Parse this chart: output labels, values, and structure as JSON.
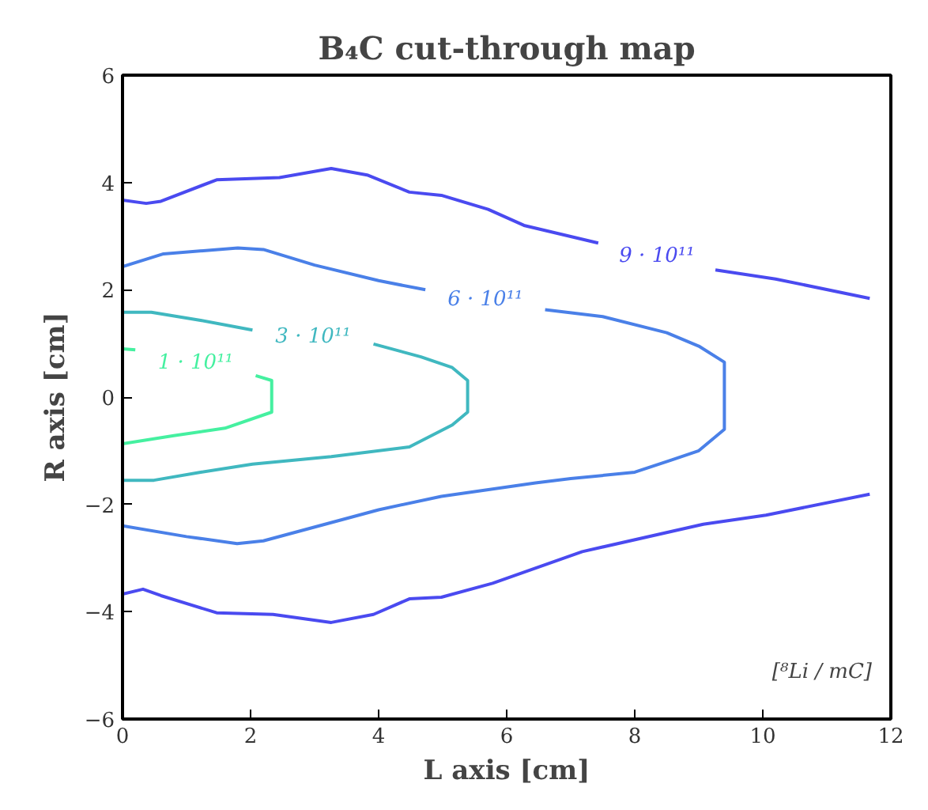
{
  "chart_data": {
    "type": "line",
    "title": "B₄C cut-through map",
    "xlabel": "L axis [cm]",
    "ylabel": "R axis [cm]",
    "xlim": [
      0,
      12
    ],
    "ylim": [
      -6,
      6
    ],
    "xticks": [
      0,
      2,
      4,
      6,
      8,
      10,
      12
    ],
    "yticks": [
      -6,
      -4,
      -2,
      0,
      2,
      4,
      6
    ],
    "grid": false,
    "marker": "none",
    "line_style": "solid",
    "series": [
      {
        "name": "1 · 10¹¹",
        "color": "#45f0a0",
        "x": [
          0,
          0.2,
          null,
          2.08,
          2.33,
          2.33,
          1.6,
          0.8,
          0
        ],
        "values": [
          0.9,
          0.88,
          null,
          0.4,
          0.31,
          -0.28,
          -0.58,
          -0.72,
          -0.87
        ]
      },
      {
        "name": "3 · 10¹¹",
        "color": "#40b8c0",
        "x": [
          0,
          0.45,
          1.22,
          2.03,
          null,
          3.92,
          4.66,
          5.15,
          5.39,
          5.39,
          5.15,
          4.48,
          3.26,
          2.03,
          1.22,
          0.49,
          0
        ],
        "values": [
          1.58,
          1.58,
          1.43,
          1.25,
          null,
          0.99,
          0.75,
          0.55,
          0.31,
          -0.28,
          -0.52,
          -0.93,
          -1.11,
          -1.25,
          -1.4,
          -1.55,
          -1.55
        ]
      },
      {
        "name": "6 · 10¹¹",
        "color": "#4a80e8",
        "x": [
          0,
          0.64,
          1.8,
          2.2,
          3.0,
          4.0,
          4.73,
          null,
          6.6,
          7.5,
          8.5,
          9.0,
          9.4,
          9.4,
          9.0,
          8.58,
          8.0,
          7.0,
          6.45,
          4.98,
          4.0,
          2.2,
          1.79,
          1.0,
          0
        ],
        "values": [
          2.43,
          2.67,
          2.78,
          2.75,
          2.46,
          2.17,
          2.0,
          null,
          1.63,
          1.5,
          1.2,
          0.95,
          0.65,
          -0.6,
          -1.0,
          -1.17,
          -1.4,
          -1.52,
          -1.6,
          -1.85,
          -2.1,
          -2.68,
          -2.73,
          -2.6,
          -2.4
        ]
      },
      {
        "name": "9 · 10¹¹",
        "color": "#4a4af0",
        "x": [
          0,
          0.37,
          0.6,
          1.47,
          2.45,
          3.26,
          3.82,
          4.48,
          4.98,
          5.71,
          6.27,
          7.43,
          null,
          9.26,
          10.2,
          11.67,
          null,
          11.67,
          10.05,
          9.07,
          7.18,
          5.78,
          4.98,
          4.48,
          3.92,
          3.26,
          2.35,
          1.47,
          0.6,
          0.32,
          0
        ],
        "values": [
          3.67,
          3.61,
          3.65,
          4.05,
          4.09,
          4.26,
          4.14,
          3.82,
          3.76,
          3.5,
          3.2,
          2.87,
          null,
          2.37,
          2.2,
          1.84,
          null,
          -1.81,
          -2.2,
          -2.37,
          -2.88,
          -3.47,
          -3.73,
          -3.76,
          -4.05,
          -4.2,
          -4.05,
          -4.02,
          -3.7,
          -3.58,
          -3.67
        ]
      }
    ],
    "annotations": [
      "[⁸Li / mC]"
    ]
  }
}
